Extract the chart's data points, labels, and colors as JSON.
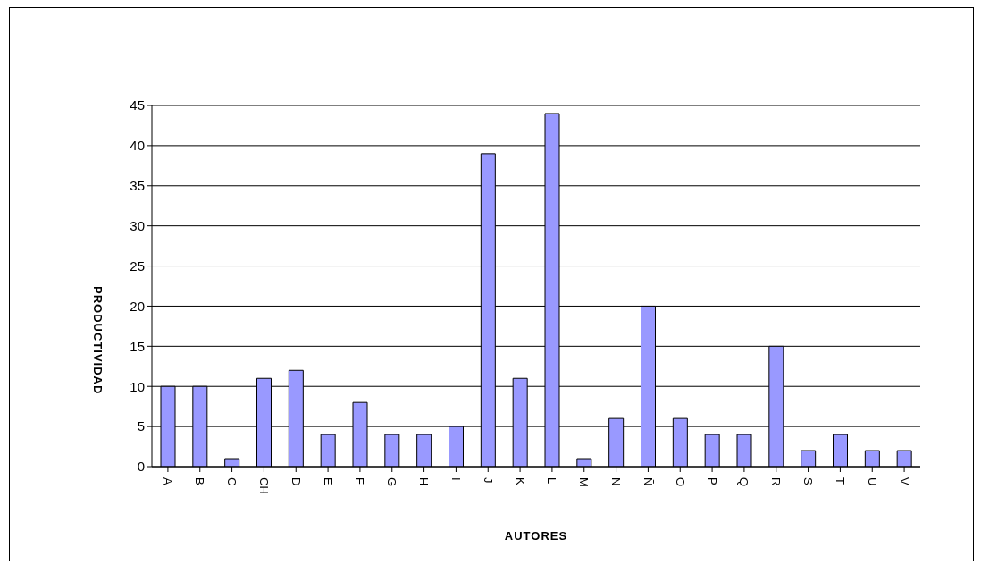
{
  "chart_data": {
    "type": "bar",
    "xlabel": "AUTORES",
    "ylabel": "PRODUCTIVIDAD",
    "categories": [
      "A",
      "B",
      "C",
      "CH",
      "D",
      "E",
      "F",
      "G",
      "H",
      "I",
      "J",
      "K",
      "L",
      "M",
      "N",
      "Ñ",
      "O",
      "P",
      "Q",
      "R",
      "S",
      "T",
      "U",
      "V"
    ],
    "values": [
      10,
      10,
      1,
      11,
      12,
      4,
      8,
      4,
      4,
      5,
      39,
      11,
      44,
      1,
      6,
      20,
      6,
      4,
      4,
      15,
      2,
      4,
      2,
      2
    ],
    "color": "#9999ff",
    "ylim": [
      0,
      45
    ],
    "yticks": [
      0,
      5,
      10,
      15,
      20,
      25,
      30,
      35,
      40,
      45
    ],
    "grid": "y"
  }
}
